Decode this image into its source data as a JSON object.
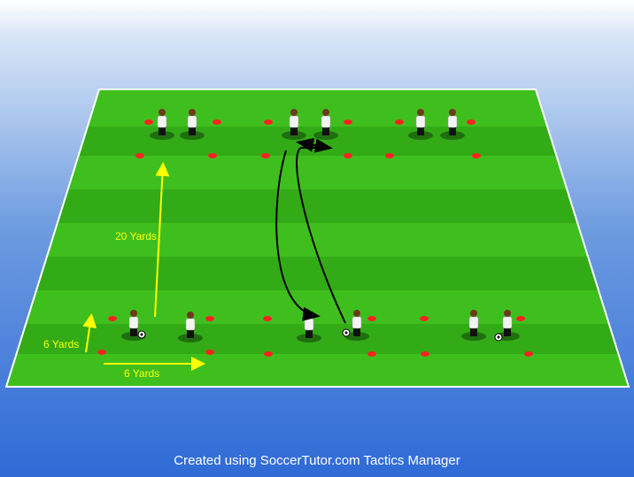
{
  "labels": {
    "vertical_long": "20 Yards",
    "vertical_short": "6 Yards",
    "horizontal": "6 Yards"
  },
  "footer": "Created using SoccerTutor.com Tactics Manager",
  "colors": {
    "pitch_light": "#3fbf1e",
    "pitch_dark": "#2fa514",
    "line": "#ffffff",
    "cone": "#ff2020",
    "measure_arrow": "#ffff00",
    "movement_arrow": "#000000"
  },
  "drill": {
    "channels": 3,
    "players_per_box": 2,
    "boxes": 6
  }
}
